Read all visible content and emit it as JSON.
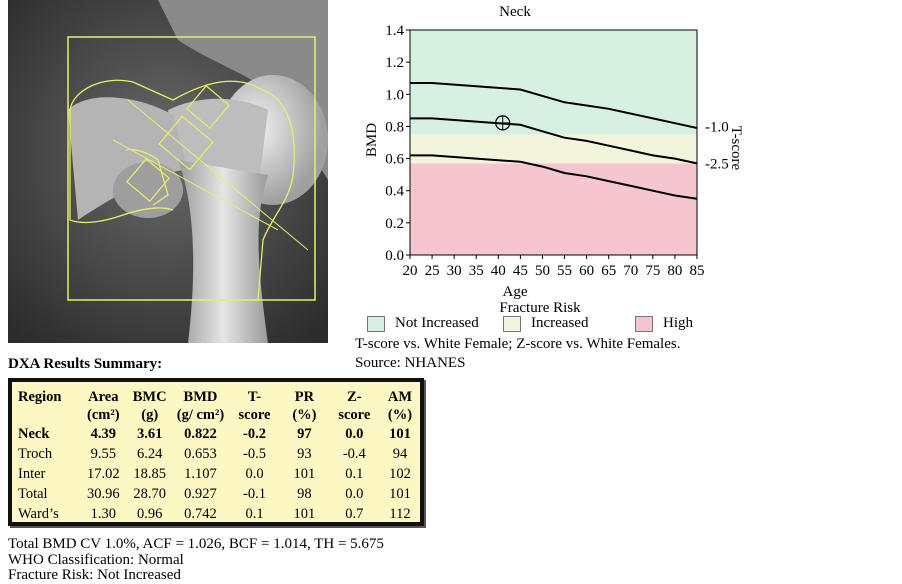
{
  "chart_data": {
    "type": "line",
    "title": "Neck",
    "xlabel": "Age",
    "ylabel": "BMD",
    "right_axis_label": "T-score",
    "xlim": [
      20,
      85
    ],
    "ylim": [
      0.0,
      1.4
    ],
    "x_ticks": [
      "20",
      "25",
      "30",
      "35",
      "40",
      "45",
      "50",
      "55",
      "60",
      "65",
      "70",
      "75",
      "80",
      "85"
    ],
    "y_ticks": [
      "0.0",
      "0.2",
      "0.4",
      "0.6",
      "0.8",
      "1.0",
      "1.2",
      "1.4"
    ],
    "zones": [
      {
        "name": "Not Increased",
        "from": 0.75,
        "to": 1.4,
        "color": "#d8f0e2"
      },
      {
        "name": "Increased",
        "from": 0.57,
        "to": 0.75,
        "color": "#f2f5dc"
      },
      {
        "name": "High",
        "from": 0.0,
        "to": 0.57,
        "color": "#f5c6cf"
      }
    ],
    "right_labels": [
      {
        "text": "-1.0",
        "y": 0.8
      },
      {
        "text": "-2.5",
        "y": 0.57
      }
    ],
    "series": [
      {
        "x": [
          20,
          25,
          30,
          35,
          40,
          45,
          50,
          55,
          60,
          65,
          70,
          75,
          80,
          85
        ],
        "values": [
          1.07,
          1.07,
          1.06,
          1.05,
          1.04,
          1.03,
          0.99,
          0.95,
          0.93,
          0.91,
          0.88,
          0.85,
          0.82,
          0.79
        ]
      },
      {
        "x": [
          20,
          25,
          30,
          35,
          40,
          45,
          50,
          55,
          60,
          65,
          70,
          75,
          80,
          85
        ],
        "values": [
          0.85,
          0.85,
          0.84,
          0.83,
          0.82,
          0.81,
          0.77,
          0.73,
          0.71,
          0.68,
          0.65,
          0.62,
          0.6,
          0.57
        ]
      },
      {
        "x": [
          20,
          25,
          30,
          35,
          40,
          45,
          50,
          55,
          60,
          65,
          70,
          75,
          80,
          85
        ],
        "values": [
          0.62,
          0.62,
          0.61,
          0.6,
          0.59,
          0.58,
          0.55,
          0.51,
          0.49,
          0.46,
          0.43,
          0.4,
          0.37,
          0.35
        ]
      }
    ],
    "marker": {
      "x": 41,
      "y": 0.822
    },
    "grid": false
  },
  "legend": {
    "title": "Fracture Risk",
    "items": [
      {
        "label": "Not Increased",
        "color": "#d8f0e2"
      },
      {
        "label": "Increased",
        "color": "#f2f5dc"
      },
      {
        "label": "High",
        "color": "#f5c6cf"
      }
    ]
  },
  "notes": {
    "line1": "T-score vs. White Female; Z-score vs. White Females.",
    "line2": "Source: NHANES"
  },
  "summary": {
    "title": "DXA Results Summary:",
    "headers": [
      [
        "Region",
        ""
      ],
      [
        "Area",
        "(cm²)"
      ],
      [
        "BMC",
        "(g)"
      ],
      [
        "BMD",
        "(g/ cm²)"
      ],
      [
        "T-",
        "score"
      ],
      [
        "PR",
        "(%)"
      ],
      [
        "Z-",
        "score"
      ],
      [
        "AM",
        "(%)"
      ]
    ],
    "rows": [
      [
        "Neck",
        "4.39",
        "3.61",
        "0.822",
        "-0.2",
        "97",
        "0.0",
        "101"
      ],
      [
        "Troch",
        "9.55",
        "6.24",
        "0.653",
        "-0.5",
        "93",
        "-0.4",
        "94"
      ],
      [
        "Inter",
        "17.02",
        "18.85",
        "1.107",
        "0.0",
        "101",
        "0.1",
        "102"
      ],
      [
        "Total",
        "30.96",
        "28.70",
        "0.927",
        "-0.1",
        "98",
        "0.0",
        "101"
      ],
      [
        "Ward’s",
        "1.30",
        "0.96",
        "0.742",
        "0.1",
        "101",
        "0.7",
        "112"
      ]
    ]
  },
  "footer": {
    "line1": "Total BMD CV 1.0%, ACF = 1.026, BCF = 1.014, TH = 5.675",
    "line2": "WHO Classification: Normal",
    "line3": "Fracture Risk: Not Increased"
  }
}
